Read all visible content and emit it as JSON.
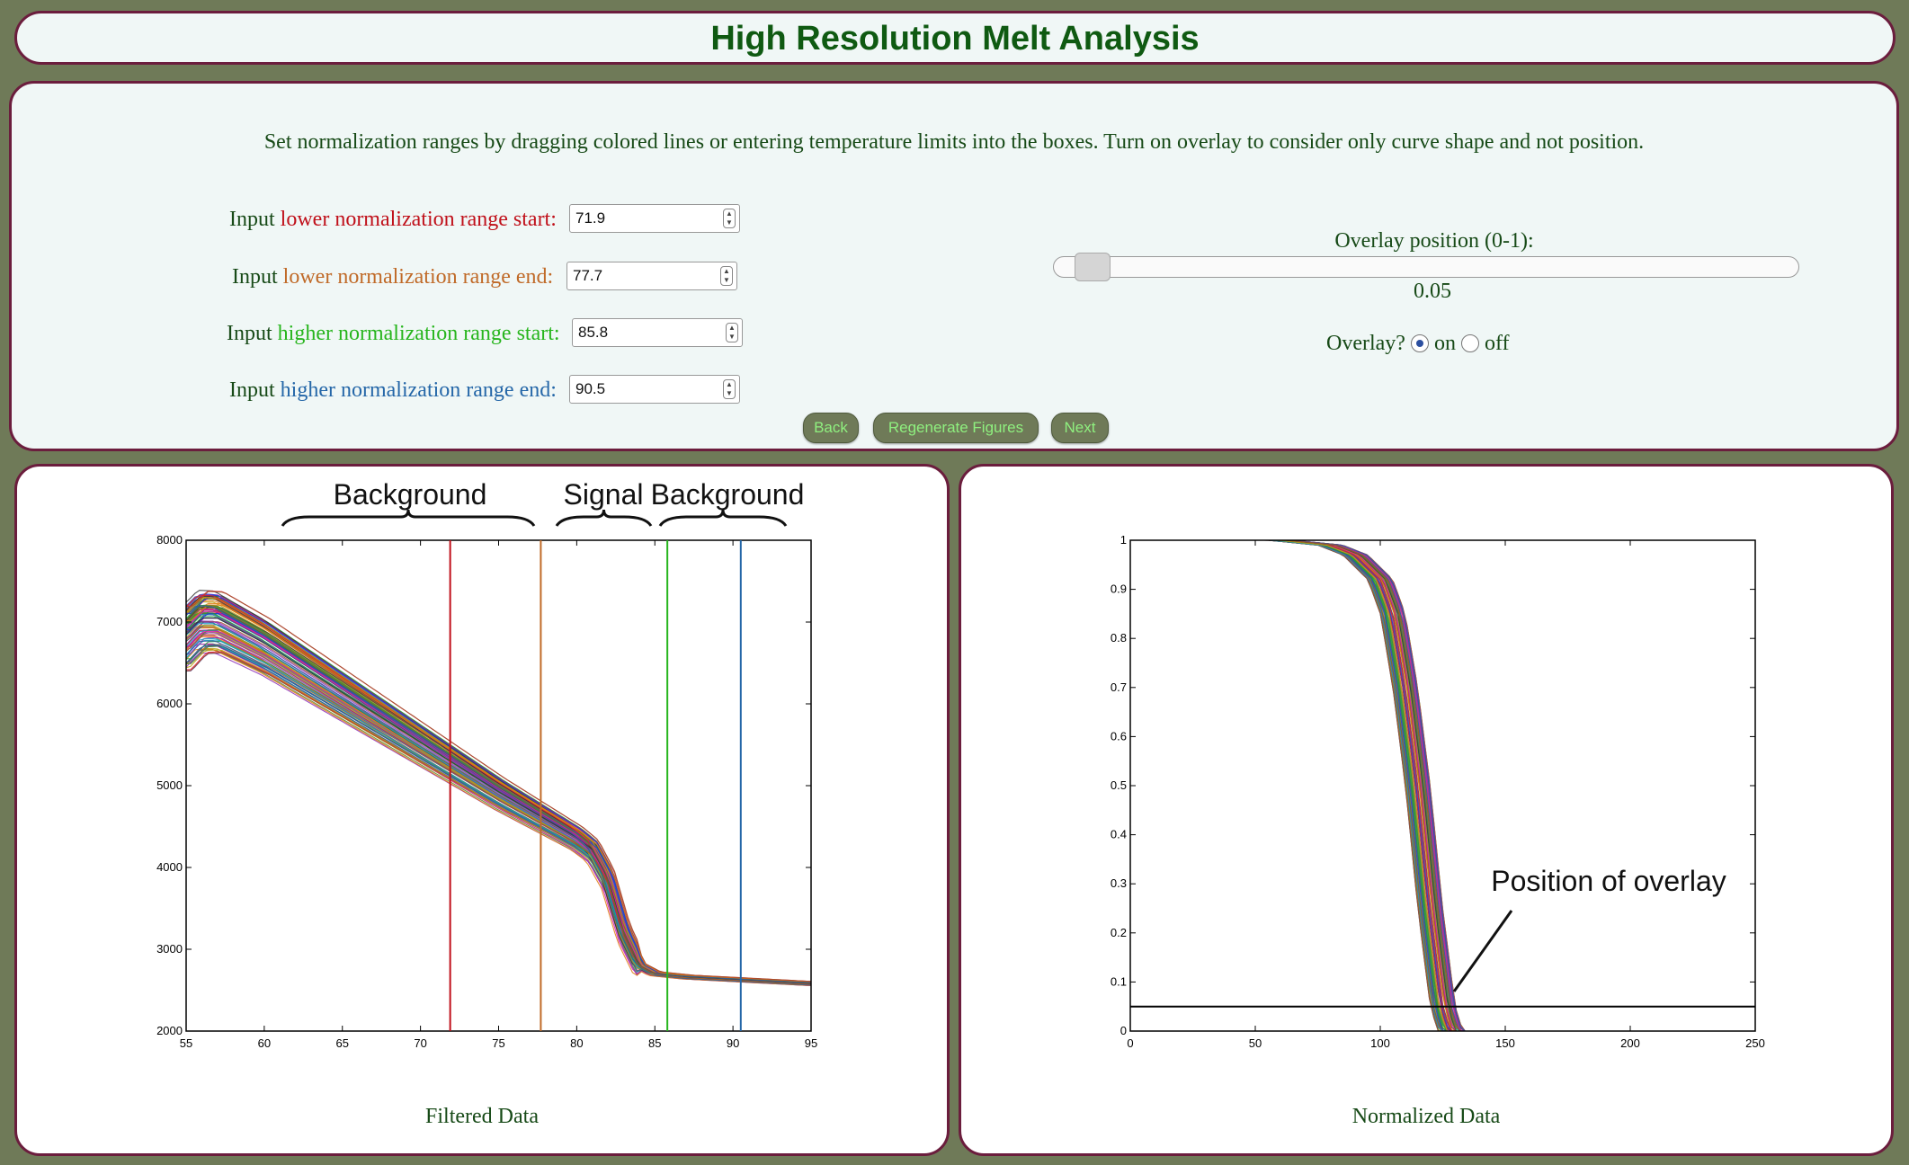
{
  "title": "High Resolution Melt Analysis",
  "instructions": "Set normalization ranges by dragging colored lines or entering temperature limits into the boxes. Turn on overlay to consider only curve shape and not position.",
  "inputs": [
    {
      "prefix": "Input",
      "label": "lower normalization range start:",
      "color": "#c0101a",
      "value": "71.9"
    },
    {
      "prefix": "Input",
      "label": "lower normalization range end:",
      "color": "#c06a28",
      "value": "77.7"
    },
    {
      "prefix": "Input",
      "label": "higher normalization range start:",
      "color": "#27b51d",
      "value": "85.8"
    },
    {
      "prefix": "Input",
      "label": "higher normalization range end:",
      "color": "#2567a8",
      "value": "90.5"
    }
  ],
  "overlay": {
    "slider_label": "Overlay position (0-1):",
    "slider_value": "0.05",
    "toggle_label": "Overlay?",
    "on_label": "on",
    "off_label": "off",
    "selected": "on"
  },
  "buttons": {
    "back": "Back",
    "regenerate": "Regenerate Figures",
    "next": "Next"
  },
  "colors": {
    "background": "#6f7a58",
    "panel": "#f0f7f6",
    "border": "#6b1d3d",
    "title": "#0f5a12",
    "button_text": "#8ff07f"
  },
  "chart_data": [
    {
      "type": "line",
      "title": "Filtered Data",
      "xlim": [
        55,
        95
      ],
      "ylim": [
        2000,
        8000
      ],
      "xticks": [
        "55",
        "60",
        "65",
        "70",
        "75",
        "80",
        "85",
        "90",
        "95"
      ],
      "yticks": [
        "2000",
        "3000",
        "4000",
        "5000",
        "6000",
        "7000",
        "8000"
      ],
      "series_count": 96,
      "representative_curve": {
        "x": [
          55,
          56,
          57,
          60,
          65,
          70,
          75,
          80,
          81,
          82,
          83,
          84,
          85,
          87,
          90,
          95
        ],
        "y": [
          6800,
          7000,
          7000,
          6700,
          6100,
          5500,
          4900,
          4350,
          4200,
          3850,
          3200,
          2800,
          2700,
          2660,
          2630,
          2580
        ]
      },
      "vertical_lines": [
        {
          "x": 71.9,
          "color": "#c0101a"
        },
        {
          "x": 77.7,
          "color": "#c06a28"
        },
        {
          "x": 85.8,
          "color": "#27b51d"
        },
        {
          "x": 90.5,
          "color": "#2567a8"
        }
      ],
      "annotations": [
        "Background",
        "Signal",
        "Background"
      ]
    },
    {
      "type": "line",
      "title": "Normalized Data",
      "xlim": [
        0,
        250
      ],
      "ylim": [
        0,
        1
      ],
      "xticks": [
        "0",
        "50",
        "100",
        "150",
        "200",
        "250"
      ],
      "yticks": [
        "0",
        "0.1",
        "0.2",
        "0.3",
        "0.4",
        "0.5",
        "0.6",
        "0.7",
        "0.8",
        "0.9",
        "1"
      ],
      "series_count": 96,
      "representative_curve": {
        "x": [
          0,
          60,
          80,
          90,
          100,
          105,
          110,
          115,
          120,
          125,
          128,
          250
        ],
        "y": [
          1,
          1,
          0.99,
          0.97,
          0.92,
          0.85,
          0.7,
          0.5,
          0.25,
          0.05,
          0,
          0
        ]
      },
      "overlay_line": {
        "y": 0.05
      },
      "annotations": [
        "Position of overlay"
      ]
    }
  ]
}
